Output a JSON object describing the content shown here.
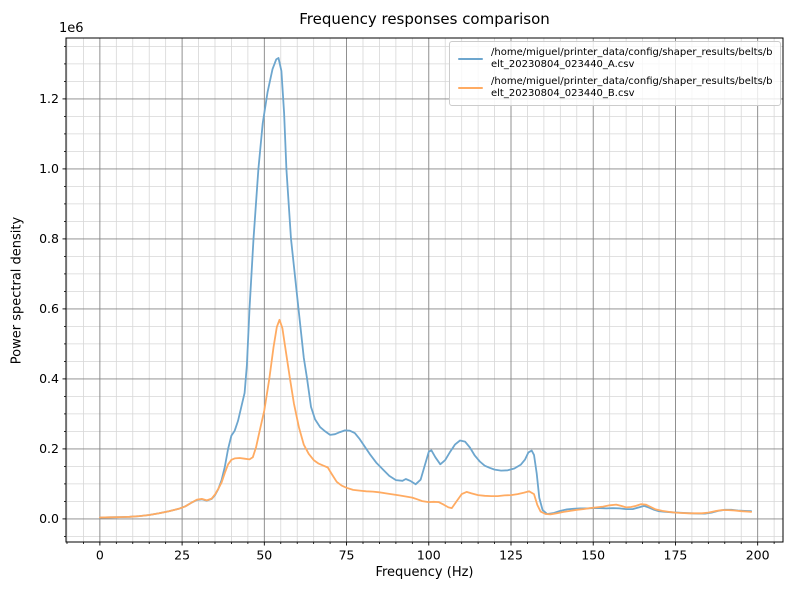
{
  "figure": {
    "background": "#ffffff",
    "text_color": "#000000"
  },
  "chart_data": {
    "type": "line",
    "title": "Frequency responses comparison",
    "xlabel": "Frequency (Hz)",
    "ylabel": "Power spectral density",
    "y_offset_label": "1e6",
    "y_unit_scale": 1000000,
    "xlim": [
      -10.3,
      207.7
    ],
    "ylim": [
      -0.066,
      1.374
    ],
    "x_major_ticks": [
      0,
      25,
      50,
      75,
      100,
      125,
      150,
      175,
      200
    ],
    "x_minor_step": 5,
    "y_major_ticks": [
      "0.0",
      "0.2",
      "0.4",
      "0.6",
      "0.8",
      "1.0",
      "1.2"
    ],
    "y_minor_step": 0.05,
    "grid": {
      "major_color": "#848484",
      "minor_color": "#d7d7d7",
      "on": true
    },
    "legend_position": "upper right",
    "series": [
      {
        "name": "/home/miguel/printer_data/config/shaper_results/belts/belt_20230804_023440_A.csv",
        "color": "#6da6ce",
        "peak": {
          "x": 54.3,
          "y": 1.317
        },
        "points": [
          [
            0,
            0.004
          ],
          [
            3,
            0.0045
          ],
          [
            6,
            0.005
          ],
          [
            9,
            0.006
          ],
          [
            12,
            0.008
          ],
          [
            15,
            0.011
          ],
          [
            18,
            0.016
          ],
          [
            21,
            0.022
          ],
          [
            24,
            0.029
          ],
          [
            26,
            0.036
          ],
          [
            28,
            0.047
          ],
          [
            29.5,
            0.054
          ],
          [
            31,
            0.056
          ],
          [
            32.5,
            0.052
          ],
          [
            34,
            0.057
          ],
          [
            35,
            0.068
          ],
          [
            36,
            0.085
          ],
          [
            37,
            0.111
          ],
          [
            38,
            0.15
          ],
          [
            39,
            0.2
          ],
          [
            40,
            0.238
          ],
          [
            41,
            0.252
          ],
          [
            42,
            0.28
          ],
          [
            43,
            0.32
          ],
          [
            44,
            0.36
          ],
          [
            44.7,
            0.44
          ],
          [
            45.5,
            0.6
          ],
          [
            46.7,
            0.8
          ],
          [
            48.2,
            1.0
          ],
          [
            49.5,
            1.13
          ],
          [
            51,
            1.22
          ],
          [
            52.5,
            1.285
          ],
          [
            53.6,
            1.313
          ],
          [
            54.3,
            1.317
          ],
          [
            55.2,
            1.28
          ],
          [
            56,
            1.16
          ],
          [
            56.7,
            1.0
          ],
          [
            58.1,
            0.8
          ],
          [
            60.4,
            0.6
          ],
          [
            62,
            0.46
          ],
          [
            63,
            0.4
          ],
          [
            64.2,
            0.32
          ],
          [
            65.4,
            0.285
          ],
          [
            67,
            0.262
          ],
          [
            68.5,
            0.25
          ],
          [
            70,
            0.24
          ],
          [
            71.5,
            0.242
          ],
          [
            73,
            0.248
          ],
          [
            74.5,
            0.253
          ],
          [
            76,
            0.252
          ],
          [
            77.5,
            0.245
          ],
          [
            79,
            0.228
          ],
          [
            80.5,
            0.207
          ],
          [
            82,
            0.186
          ],
          [
            84,
            0.161
          ],
          [
            86,
            0.142
          ],
          [
            88,
            0.123
          ],
          [
            90,
            0.111
          ],
          [
            92,
            0.109
          ],
          [
            93,
            0.114
          ],
          [
            94.5,
            0.108
          ],
          [
            96,
            0.099
          ],
          [
            97.5,
            0.112
          ],
          [
            98.7,
            0.15
          ],
          [
            100,
            0.192
          ],
          [
            100.8,
            0.196
          ],
          [
            102,
            0.176
          ],
          [
            103.5,
            0.156
          ],
          [
            105,
            0.168
          ],
          [
            106.5,
            0.192
          ],
          [
            108,
            0.213
          ],
          [
            109.5,
            0.224
          ],
          [
            111,
            0.221
          ],
          [
            112.5,
            0.204
          ],
          [
            114,
            0.181
          ],
          [
            115.5,
            0.164
          ],
          [
            117,
            0.152
          ],
          [
            118.5,
            0.146
          ],
          [
            120,
            0.141
          ],
          [
            122,
            0.138
          ],
          [
            124,
            0.139
          ],
          [
            126,
            0.144
          ],
          [
            128,
            0.155
          ],
          [
            129.3,
            0.17
          ],
          [
            130.3,
            0.19
          ],
          [
            131.3,
            0.195
          ],
          [
            132,
            0.183
          ],
          [
            132.8,
            0.13
          ],
          [
            133.6,
            0.06
          ],
          [
            134.6,
            0.025
          ],
          [
            136,
            0.014
          ],
          [
            138,
            0.017
          ],
          [
            140,
            0.023
          ],
          [
            142,
            0.027
          ],
          [
            144,
            0.029
          ],
          [
            146,
            0.03
          ],
          [
            148,
            0.03
          ],
          [
            150,
            0.031
          ],
          [
            152,
            0.031
          ],
          [
            154,
            0.03
          ],
          [
            156,
            0.031
          ],
          [
            158,
            0.03
          ],
          [
            160,
            0.028
          ],
          [
            162,
            0.028
          ],
          [
            163.5,
            0.032
          ],
          [
            165.5,
            0.037
          ],
          [
            167,
            0.032
          ],
          [
            168.5,
            0.026
          ],
          [
            170,
            0.022
          ],
          [
            172,
            0.02
          ],
          [
            174,
            0.019
          ],
          [
            176,
            0.018
          ],
          [
            178,
            0.017
          ],
          [
            180,
            0.016
          ],
          [
            182,
            0.015
          ],
          [
            184,
            0.015
          ],
          [
            186,
            0.018
          ],
          [
            188,
            0.023
          ],
          [
            190,
            0.026
          ],
          [
            192,
            0.026
          ],
          [
            194,
            0.024
          ],
          [
            196,
            0.023
          ],
          [
            198,
            0.022
          ]
        ]
      },
      {
        "name": "/home/miguel/printer_data/config/shaper_results/belts/belt_20230804_023440_B.csv",
        "color": "#ffab62",
        "peak": {
          "x": 54.6,
          "y": 0.569
        },
        "points": [
          [
            0,
            0.004
          ],
          [
            3,
            0.0045
          ],
          [
            6,
            0.005
          ],
          [
            9,
            0.006
          ],
          [
            12,
            0.008
          ],
          [
            15,
            0.011
          ],
          [
            18,
            0.016
          ],
          [
            21,
            0.022
          ],
          [
            24,
            0.029
          ],
          [
            26,
            0.036
          ],
          [
            28,
            0.047
          ],
          [
            29.5,
            0.055
          ],
          [
            31,
            0.057
          ],
          [
            32.5,
            0.053
          ],
          [
            34,
            0.058
          ],
          [
            35,
            0.07
          ],
          [
            36,
            0.086
          ],
          [
            37,
            0.104
          ],
          [
            38,
            0.132
          ],
          [
            39,
            0.156
          ],
          [
            40,
            0.169
          ],
          [
            41,
            0.173
          ],
          [
            42.5,
            0.174
          ],
          [
            44,
            0.172
          ],
          [
            45.5,
            0.17
          ],
          [
            46.5,
            0.176
          ],
          [
            47.5,
            0.205
          ],
          [
            48.5,
            0.248
          ],
          [
            50,
            0.31
          ],
          [
            51.5,
            0.4
          ],
          [
            52.8,
            0.49
          ],
          [
            53.8,
            0.548
          ],
          [
            54.6,
            0.569
          ],
          [
            55.5,
            0.545
          ],
          [
            56.3,
            0.495
          ],
          [
            57.8,
            0.4
          ],
          [
            59,
            0.33
          ],
          [
            60.5,
            0.262
          ],
          [
            62,
            0.212
          ],
          [
            63.5,
            0.186
          ],
          [
            65,
            0.168
          ],
          [
            66.5,
            0.158
          ],
          [
            68,
            0.152
          ],
          [
            69.3,
            0.147
          ],
          [
            70.5,
            0.128
          ],
          [
            72,
            0.106
          ],
          [
            73.5,
            0.095
          ],
          [
            75,
            0.089
          ],
          [
            77,
            0.083
          ],
          [
            79,
            0.081
          ],
          [
            81,
            0.079
          ],
          [
            83,
            0.078
          ],
          [
            85,
            0.076
          ],
          [
            87,
            0.073
          ],
          [
            89,
            0.07
          ],
          [
            91,
            0.067
          ],
          [
            93,
            0.064
          ],
          [
            95,
            0.061
          ],
          [
            96.5,
            0.056
          ],
          [
            98,
            0.051
          ],
          [
            100,
            0.048
          ],
          [
            101.5,
            0.049
          ],
          [
            103,
            0.048
          ],
          [
            104.5,
            0.041
          ],
          [
            106,
            0.033
          ],
          [
            107,
            0.031
          ],
          [
            108.5,
            0.051
          ],
          [
            110,
            0.071
          ],
          [
            111.5,
            0.077
          ],
          [
            113,
            0.073
          ],
          [
            115,
            0.068
          ],
          [
            117,
            0.066
          ],
          [
            119,
            0.065
          ],
          [
            121,
            0.065
          ],
          [
            123,
            0.067
          ],
          [
            125,
            0.068
          ],
          [
            127,
            0.071
          ],
          [
            129,
            0.075
          ],
          [
            130.5,
            0.079
          ],
          [
            132,
            0.071
          ],
          [
            133,
            0.04
          ],
          [
            134,
            0.021
          ],
          [
            135.5,
            0.014
          ],
          [
            137,
            0.013
          ],
          [
            139,
            0.016
          ],
          [
            141,
            0.02
          ],
          [
            143,
            0.023
          ],
          [
            145,
            0.026
          ],
          [
            147,
            0.028
          ],
          [
            149,
            0.031
          ],
          [
            151,
            0.033
          ],
          [
            153,
            0.035
          ],
          [
            155,
            0.039
          ],
          [
            157,
            0.041
          ],
          [
            158.5,
            0.037
          ],
          [
            160,
            0.033
          ],
          [
            161.5,
            0.034
          ],
          [
            163,
            0.037
          ],
          [
            164.5,
            0.042
          ],
          [
            166,
            0.041
          ],
          [
            167.5,
            0.034
          ],
          [
            169,
            0.027
          ],
          [
            171,
            0.023
          ],
          [
            173,
            0.02
          ],
          [
            175,
            0.018
          ],
          [
            177,
            0.017
          ],
          [
            179,
            0.016
          ],
          [
            181,
            0.016
          ],
          [
            183,
            0.016
          ],
          [
            185,
            0.018
          ],
          [
            187,
            0.022
          ],
          [
            189,
            0.025
          ],
          [
            191,
            0.025
          ],
          [
            193,
            0.024
          ],
          [
            195,
            0.022
          ],
          [
            197,
            0.021
          ],
          [
            198,
            0.02
          ]
        ]
      }
    ]
  }
}
